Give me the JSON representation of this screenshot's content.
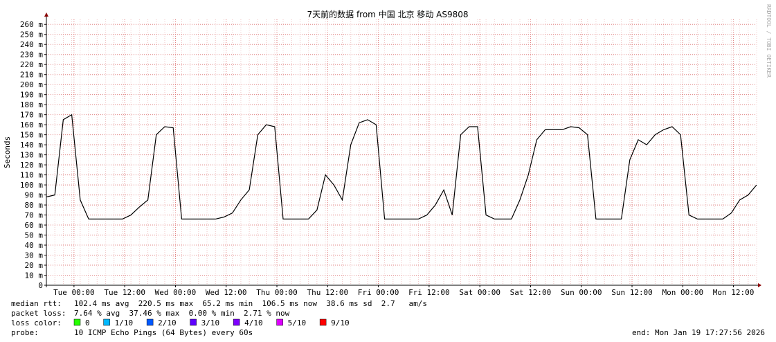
{
  "chart_data": {
    "type": "line",
    "title": "7天前的数据 from 中国 北京 移动 AS9808",
    "y_label": "Seconds",
    "side_note": "RRDTOOL / TOBI OETIKER",
    "color": "#000000",
    "x": [
      0,
      2,
      4,
      6,
      8,
      10,
      12,
      14,
      16,
      18,
      20,
      22,
      24,
      26,
      28,
      30,
      32,
      34,
      36,
      38,
      40,
      42,
      44,
      46,
      48,
      50,
      52,
      54,
      56,
      58,
      60,
      62,
      64,
      66,
      68,
      70,
      72,
      74,
      76,
      78,
      80,
      82,
      84,
      86,
      88,
      90,
      92,
      94,
      96,
      98,
      100,
      102,
      104,
      106,
      108,
      110,
      112,
      114,
      116,
      118,
      120,
      122,
      124,
      126,
      128,
      130,
      132,
      134,
      136,
      138,
      140,
      142,
      144,
      146,
      148,
      150,
      152,
      154,
      156,
      158,
      160,
      162,
      164,
      166,
      168
    ],
    "values": [
      88,
      90,
      165,
      170,
      85,
      66,
      66,
      66,
      66,
      66,
      70,
      78,
      85,
      150,
      158,
      157,
      66,
      66,
      66,
      66,
      66,
      68,
      72,
      85,
      95,
      150,
      160,
      158,
      66,
      66,
      66,
      66,
      75,
      110,
      100,
      85,
      140,
      162,
      165,
      160,
      66,
      66,
      66,
      66,
      66,
      70,
      80,
      95,
      70,
      150,
      158,
      158,
      70,
      66,
      66,
      66,
      85,
      110,
      145,
      155,
      155,
      155,
      158,
      157,
      150,
      66,
      66,
      66,
      66,
      125,
      145,
      140,
      150,
      155,
      158,
      150,
      70,
      66,
      66,
      66,
      66,
      72,
      85,
      90,
      100
    ],
    "xlim": [
      0,
      168
    ],
    "xticks": [
      {
        "value": 6.53,
        "label": "Tue 00:00"
      },
      {
        "value": 18.53,
        "label": "Tue 12:00"
      },
      {
        "value": 30.53,
        "label": "Wed 00:00"
      },
      {
        "value": 42.53,
        "label": "Wed 12:00"
      },
      {
        "value": 54.53,
        "label": "Thu 00:00"
      },
      {
        "value": 66.53,
        "label": "Thu 12:00"
      },
      {
        "value": 78.53,
        "label": "Fri 00:00"
      },
      {
        "value": 90.53,
        "label": "Fri 12:00"
      },
      {
        "value": 102.53,
        "label": "Sat 00:00"
      },
      {
        "value": 114.53,
        "label": "Sat 12:00"
      },
      {
        "value": 126.53,
        "label": "Sun 00:00"
      },
      {
        "value": 138.53,
        "label": "Sun 12:00"
      },
      {
        "value": 150.53,
        "label": "Mon 00:00"
      },
      {
        "value": 162.53,
        "label": "Mon 12:00"
      }
    ],
    "ylim": [
      0,
      265
    ],
    "yticks": [
      0,
      {
        "value": 10,
        "label": "10 m"
      },
      {
        "value": 20,
        "label": "20 m"
      },
      {
        "value": 30,
        "label": "30 m"
      },
      {
        "value": 40,
        "label": "40 m"
      },
      {
        "value": 50,
        "label": "50 m"
      },
      {
        "value": 60,
        "label": "60 m"
      },
      {
        "value": 70,
        "label": "70 m"
      },
      {
        "value": 80,
        "label": "80 m"
      },
      {
        "value": 90,
        "label": "90 m"
      },
      {
        "value": 100,
        "label": "100 m"
      },
      {
        "value": 110,
        "label": "110 m"
      },
      {
        "value": 120,
        "label": "120 m"
      },
      {
        "value": 130,
        "label": "130 m"
      },
      {
        "value": 140,
        "label": "140 m"
      },
      {
        "value": 150,
        "label": "150 m"
      },
      {
        "value": 160,
        "label": "160 m"
      },
      {
        "value": 170,
        "label": "170 m"
      },
      {
        "value": 180,
        "label": "180 m"
      },
      {
        "value": 190,
        "label": "190 m"
      },
      {
        "value": 200,
        "label": "200 m"
      },
      {
        "value": 210,
        "label": "210 m"
      },
      {
        "value": 220,
        "label": "220 m"
      },
      {
        "value": 230,
        "label": "230 m"
      },
      {
        "value": 240,
        "label": "240 m"
      },
      {
        "value": 250,
        "label": "250 m"
      },
      {
        "value": 260,
        "label": "260 m"
      }
    ],
    "grid": true,
    "footer": {
      "median_rtt": {
        "label": "median rtt:",
        "text": "102.4 ms avg  220.5 ms max  65.2 ms min  106.5 ms now  38.6 ms sd  2.7   am/s"
      },
      "packet_loss": {
        "label": "packet loss:",
        "text": "7.64 % avg  37.46 % max  0.00 % min  2.71 % now"
      },
      "loss_color": {
        "label": "loss color:",
        "items": [
          {
            "label": "0",
            "color": "#26ff00"
          },
          {
            "label": "1/10",
            "color": "#00b8ff"
          },
          {
            "label": "2/10",
            "color": "#0059ff"
          },
          {
            "label": "3/10",
            "color": "#5e00ff"
          },
          {
            "label": "4/10",
            "color": "#7e00ff"
          },
          {
            "label": "5/10",
            "color": "#dd00ff"
          },
          {
            "label": "9/10",
            "color": "#ff0000"
          }
        ]
      },
      "probe": {
        "label": "probe:",
        "text": "10 ICMP Echo Pings (64 Bytes) every 60s"
      },
      "end": "end: Mon Jan 19 17:27:56 2026"
    }
  }
}
